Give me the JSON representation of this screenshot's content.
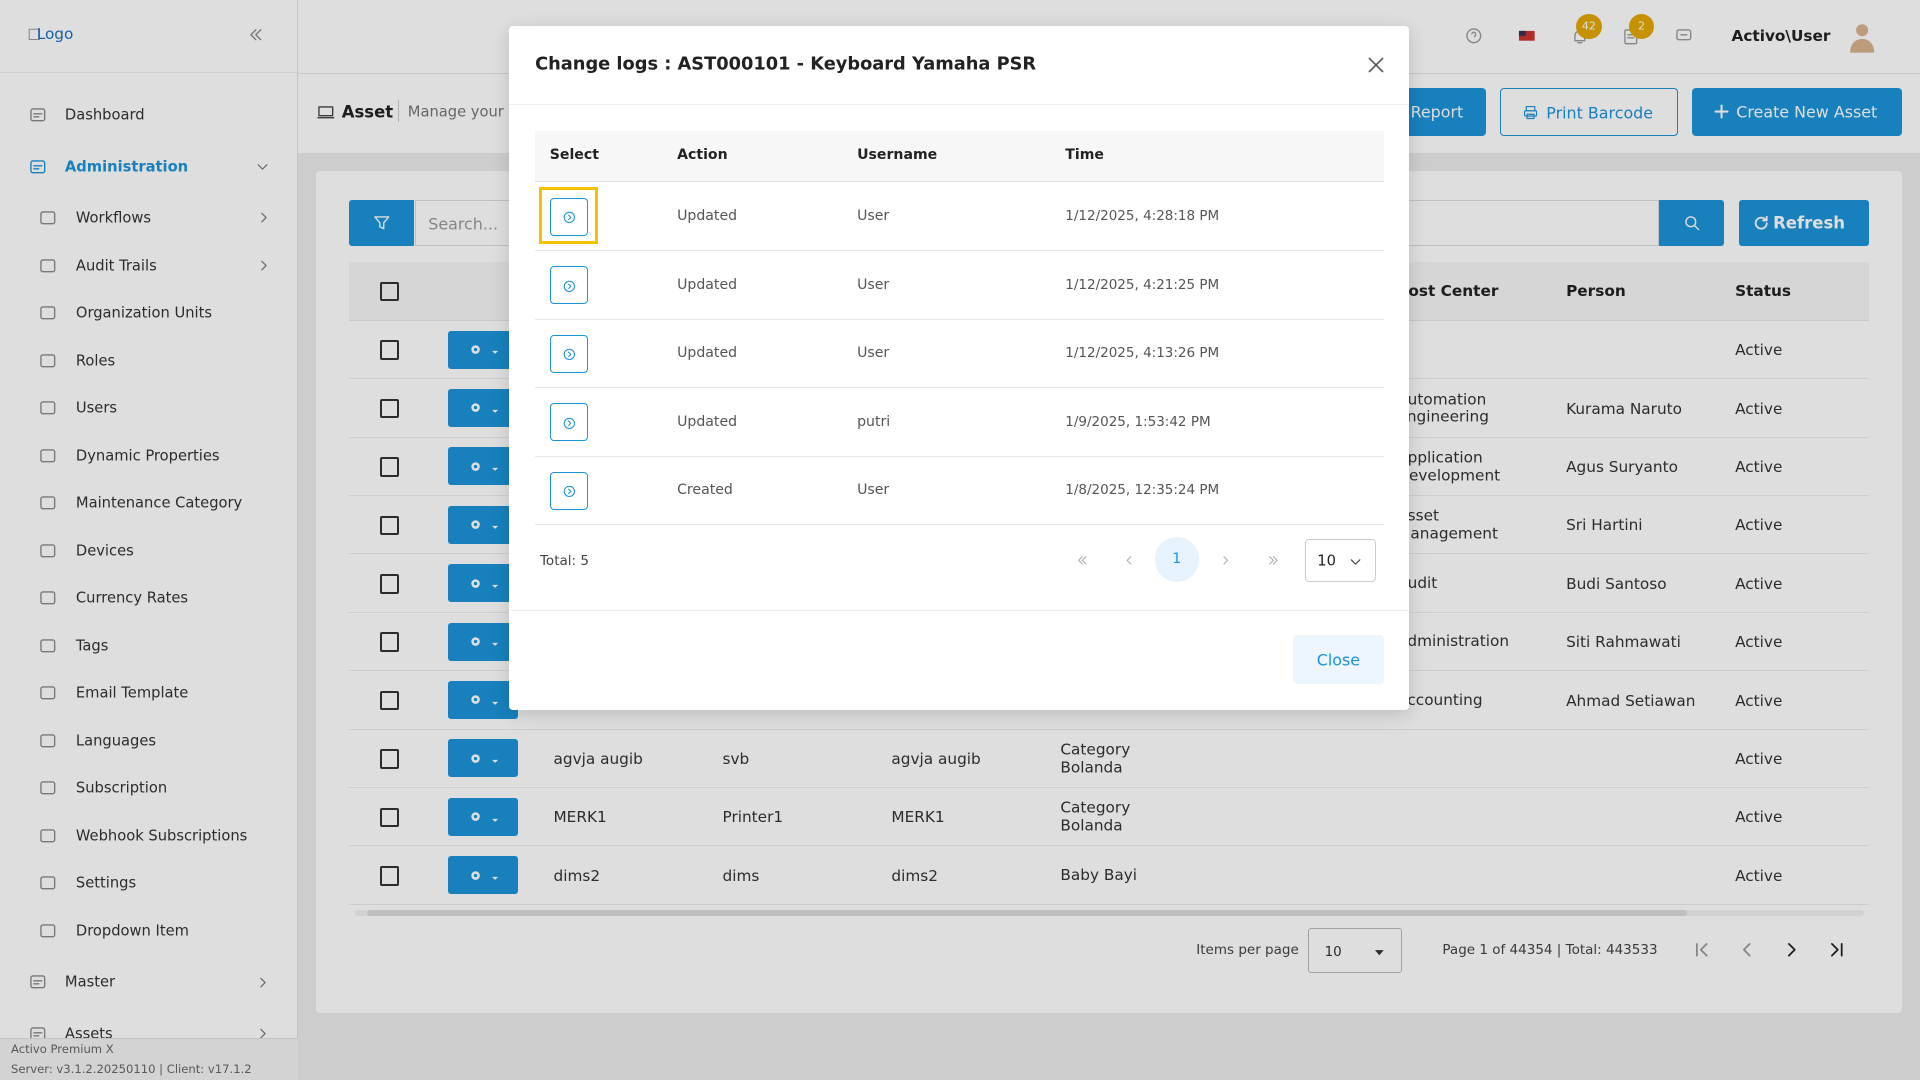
{
  "sidebar": {
    "logo": "Logo",
    "menu": [
      {
        "label": "Dashboard"
      },
      {
        "label": "Administration",
        "children": [
          "Workflows",
          "Audit Trails",
          "Organization Units",
          "Roles",
          "Users",
          "Dynamic Properties",
          "Maintenance Category",
          "Devices",
          "Currency Rates",
          "Tags",
          "Email Template",
          "Languages",
          "Subscription",
          "Webhook Subscriptions",
          "Settings",
          "Dropdown Item"
        ]
      },
      {
        "label": "Master"
      },
      {
        "label": "Assets"
      }
    ],
    "footer": {
      "product": "Activo Premium X",
      "version": "Server: v3.1.2.20250110 | Client: v17.1.2"
    }
  },
  "topbar": {
    "notification_count": "42",
    "task_count": "2",
    "user": "Activo\\User"
  },
  "page": {
    "title": "Asset",
    "subtitle": "Manage your",
    "actions": [
      "Report",
      "Print Barcode",
      "Create New Asset"
    ],
    "search_placeholder": "Search...",
    "refresh": "Refresh"
  },
  "table": {
    "columns": {
      "cost_center": "Cost Center",
      "person": "Person",
      "status": "Status"
    },
    "rows": [
      {
        "status": "Active"
      },
      {
        "cost_center": "Automation Engineering",
        "person": "Kurama Naruto",
        "status": "Active"
      },
      {
        "cost_center": "Application Development",
        "person": "Agus Suryanto",
        "status": "Active"
      },
      {
        "cost_center": "Asset Management",
        "person": "Sri Hartini",
        "status": "Active"
      },
      {
        "cost_center": "Audit",
        "person": "Budi Santoso",
        "status": "Active"
      },
      {
        "cost_center": "Administration",
        "person": "Siti Rahmawati",
        "status": "Active"
      },
      {
        "cost_center": "Accounting",
        "person": "Ahmad Setiawan",
        "status": "Active"
      },
      {
        "code": "agvja augib",
        "name": "svb",
        "brand": "agvja augib",
        "category": "Category Bolanda",
        "status": "Active"
      },
      {
        "code": "MERK1",
        "name": "Printer1",
        "brand": "MERK1",
        "category": "Category Bolanda",
        "status": "Active"
      },
      {
        "code": "dims2",
        "name": "dims",
        "brand": "dims2",
        "category": "Baby Bayi",
        "status": "Active"
      }
    ]
  },
  "pagination": {
    "items_per_page_label": "Items per page",
    "page_size": "10",
    "summary": "Page 1 of 44354 | Total: 443533"
  },
  "modal": {
    "title": "Change logs : AST000101 - Keyboard Yamaha PSR",
    "columns": [
      "Select",
      "Action",
      "Username",
      "Time"
    ],
    "rows": [
      {
        "action": "Updated",
        "username": "User",
        "time": "1/12/2025, 4:28:18 PM"
      },
      {
        "action": "Updated",
        "username": "User",
        "time": "1/12/2025, 4:21:25 PM"
      },
      {
        "action": "Updated",
        "username": "User",
        "time": "1/12/2025, 4:13:26 PM"
      },
      {
        "action": "Updated",
        "username": "putri",
        "time": "1/9/2025, 1:53:42 PM"
      },
      {
        "action": "Created",
        "username": "User",
        "time": "1/8/2025, 12:35:24 PM"
      }
    ],
    "total": "Total: 5",
    "current_page": "1",
    "page_size": "10",
    "close": "Close"
  }
}
